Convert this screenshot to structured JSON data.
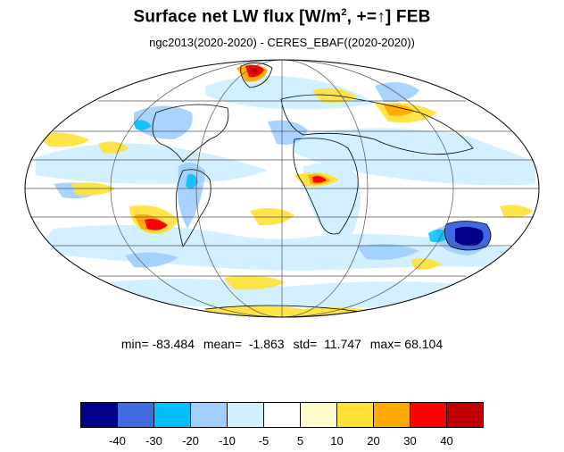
{
  "title_main": "Surface net LW flux [W/m",
  "title_sup": "2",
  "title_tail": ", +=↑]  FEB",
  "subtitle": "ngc2013(2020-2020) - CERES_EBAF((2020-2020))",
  "stats": {
    "min": "min= -83.484",
    "mean": "mean=  -1.863",
    "std": "std=  11.747",
    "max": "max= 68.104"
  },
  "colorbar": {
    "colors": [
      "#00008b",
      "#4169e1",
      "#00bfff",
      "#a0cfff",
      "#d0f0ff",
      "#ffffff",
      "#fffccc",
      "#ffe135",
      "#ffaa00",
      "#ff0000",
      "#c00000"
    ],
    "labels": [
      "-40",
      "-30",
      "-20",
      "-10",
      "-5",
      "5",
      "10",
      "20",
      "30",
      "40"
    ]
  },
  "map": {
    "projection": "mollweide",
    "ocean_color": "#ffffff",
    "coast_color": "#000000",
    "grid_color": "#555555"
  }
}
